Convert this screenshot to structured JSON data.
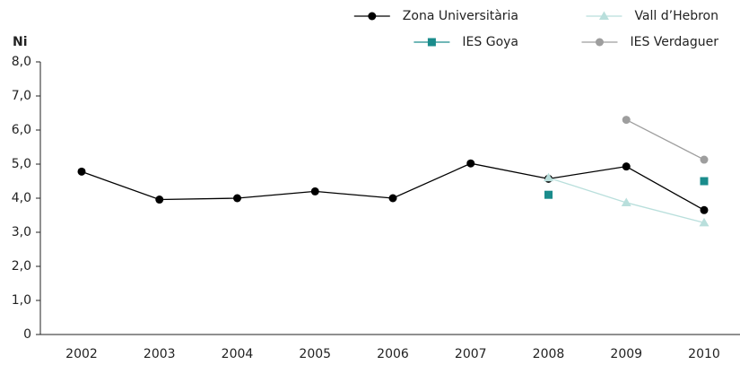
{
  "chart_data": {
    "type": "line",
    "y_label": "Ni",
    "categories": [
      "2002",
      "2003",
      "2004",
      "2005",
      "2006",
      "2007",
      "2008",
      "2009",
      "2010"
    ],
    "series": [
      {
        "name": "Zona Universitària",
        "color": "#000000",
        "marker": "circle",
        "values": [
          4.78,
          3.96,
          4.0,
          4.2,
          4.0,
          5.02,
          4.57,
          4.93,
          3.65
        ]
      },
      {
        "name": "Vall d’Hebron",
        "color": "#b9dfdc",
        "marker": "triangle",
        "values": [
          null,
          null,
          null,
          null,
          null,
          null,
          4.6,
          3.87,
          3.28
        ]
      },
      {
        "name": "IES Goya",
        "color": "#1a8c8c",
        "marker": "square",
        "values": [
          null,
          null,
          null,
          null,
          null,
          null,
          4.1,
          null,
          4.5
        ]
      },
      {
        "name": "IES Verdaguer",
        "color": "#9e9e9e",
        "marker": "circle",
        "values": [
          null,
          null,
          null,
          null,
          null,
          null,
          null,
          6.3,
          5.13
        ]
      }
    ],
    "ylim": [
      0,
      8
    ],
    "yticks": [
      0,
      {
        "value": 1,
        "label": "1,0"
      },
      {
        "value": 2,
        "label": "2,0"
      },
      {
        "value": 3,
        "label": "3,0"
      },
      {
        "value": 4,
        "label": "4,0"
      },
      {
        "value": 5,
        "label": "5,0"
      },
      {
        "value": 6,
        "label": "6,0"
      },
      {
        "value": 7,
        "label": "7,0"
      },
      {
        "value": 8,
        "label": "8,0"
      }
    ],
    "grid": false
  }
}
